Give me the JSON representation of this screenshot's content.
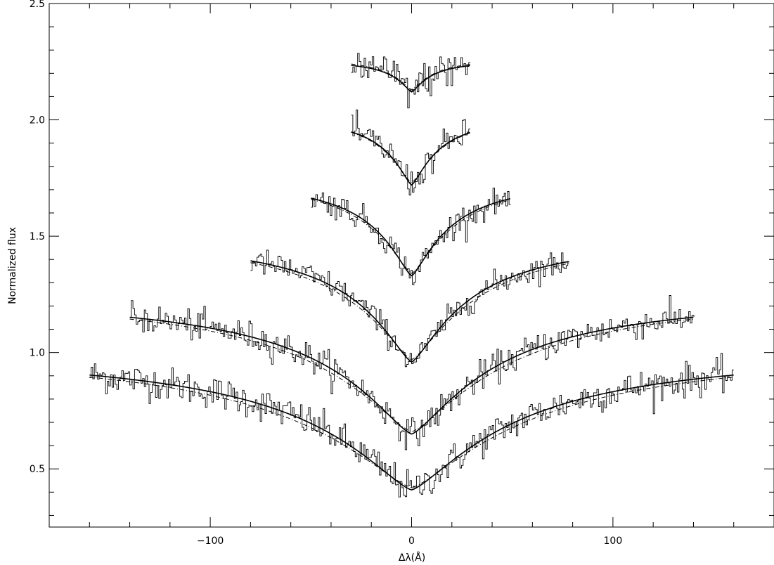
{
  "chart_data": {
    "type": "line",
    "title": "",
    "xlabel": "Δλ(Å)",
    "ylabel": "Normalized flux",
    "xlim": [
      -180,
      180
    ],
    "ylim": [
      0.25,
      2.5
    ],
    "x_ticks": [
      -100,
      0,
      100
    ],
    "x_tick_labels": [
      "−100",
      "0",
      "100"
    ],
    "y_ticks": [
      0.5,
      1.0,
      1.5,
      2.0,
      2.5
    ],
    "y_tick_labels": [
      "0.5",
      "1.0",
      "1.5",
      "2.0",
      "2.5"
    ],
    "grid": false,
    "legend": "none",
    "series": [
      {
        "offset": 0.0,
        "continuum": 1.02,
        "depth": 0.61,
        "xrange": [
          -160,
          160
        ],
        "width": 55,
        "noise": 0.045
      },
      {
        "offset": 0.25,
        "continuum": 1.26,
        "depth": 0.61,
        "xrange": [
          -140,
          140
        ],
        "width": 45,
        "noise": 0.04
      },
      {
        "offset": 0.5,
        "continuum": 1.51,
        "depth": 0.55,
        "xrange": [
          -80,
          78
        ],
        "width": 30,
        "noise": 0.035
      },
      {
        "offset": 0.75,
        "continuum": 1.76,
        "depth": 0.43,
        "xrange": [
          -50,
          49
        ],
        "width": 20,
        "noise": 0.035
      },
      {
        "offset": 1.0,
        "continuum": 2.03,
        "depth": 0.31,
        "xrange": [
          -30,
          29
        ],
        "width": 14,
        "noise": 0.04
      },
      {
        "offset": 1.25,
        "continuum": 2.26,
        "depth": 0.14,
        "xrange": [
          -30,
          29
        ],
        "width": 10,
        "noise": 0.05
      }
    ]
  }
}
